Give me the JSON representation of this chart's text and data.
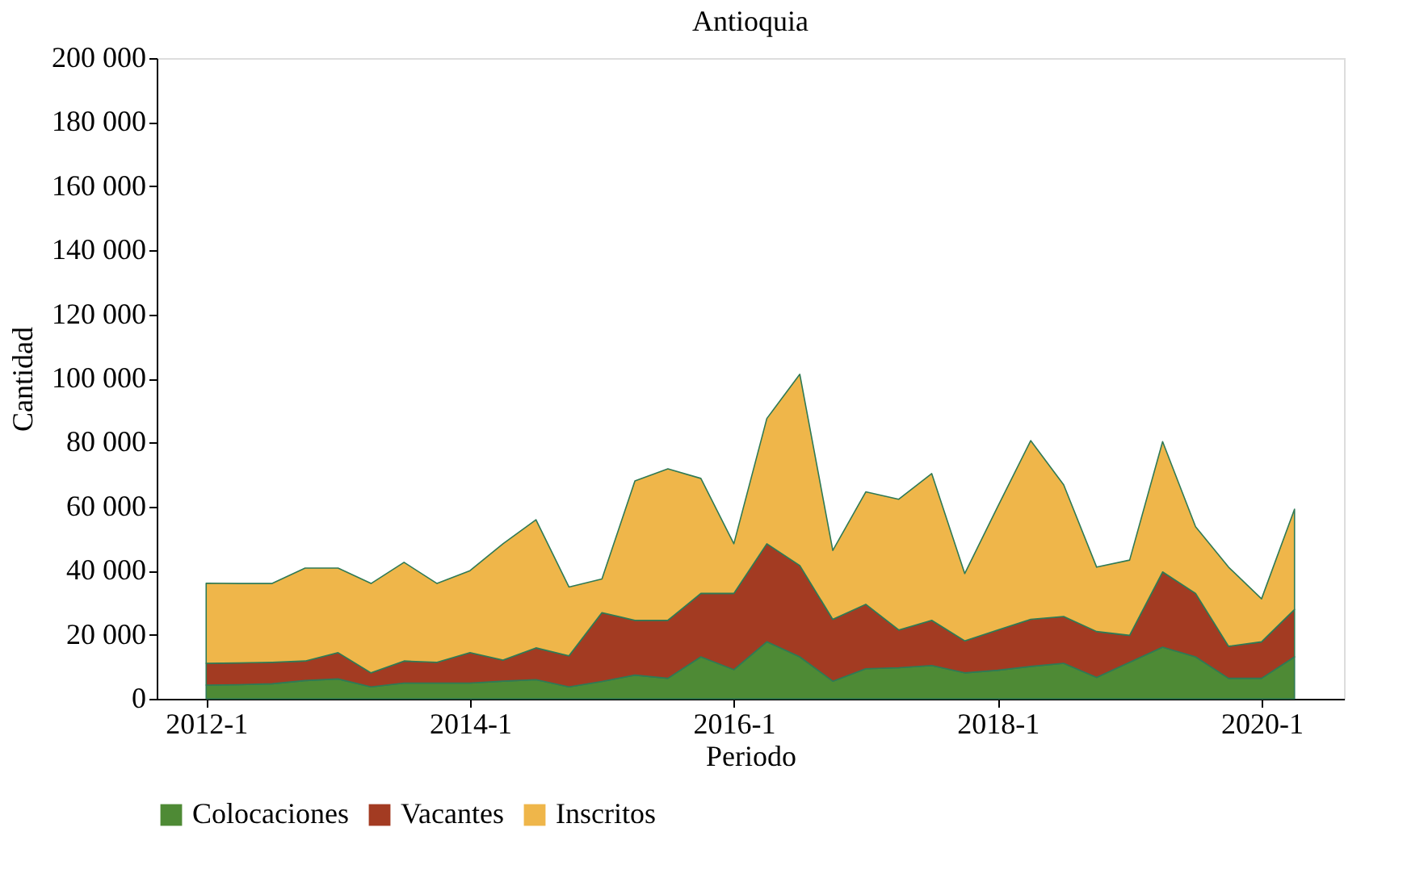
{
  "chart_data": {
    "type": "area",
    "title": "Antioquia",
    "xlabel": "Periodo",
    "ylabel": "Cantidad",
    "stacked": true,
    "legend": "bottom",
    "grid": false,
    "categories": [
      "2012-1",
      null,
      null,
      null,
      null,
      null,
      null,
      null,
      "2014-1",
      null,
      null,
      null,
      null,
      null,
      null,
      null,
      "2016-1",
      null,
      null,
      null,
      null,
      null,
      null,
      null,
      "2018-1",
      null,
      null,
      null,
      null,
      null,
      null,
      null,
      "2020-1",
      null
    ],
    "series": [
      {
        "name": "Colocaciones",
        "color": "#4e8a35",
        "values": [
          4300,
          4400,
          4700,
          5700,
          6200,
          3700,
          4900,
          4900,
          4900,
          5500,
          6000,
          3700,
          5400,
          7400,
          6400,
          13100,
          9100,
          17800,
          13100,
          5500,
          9400,
          9700,
          10400,
          8100,
          8900,
          10100,
          11100,
          6700,
          11400,
          16100,
          13100,
          6400,
          6400,
          13100
        ]
      },
      {
        "name": "Vacantes",
        "color": "#a33b22",
        "values": [
          6800,
          6800,
          6700,
          6100,
          8200,
          4400,
          6900,
          6500,
          9500,
          6600,
          9900,
          9700,
          21500,
          17100,
          18100,
          19800,
          23800,
          30600,
          28500,
          19300,
          20100,
          11800,
          14100,
          10000,
          12600,
          14700,
          14600,
          14300,
          8400,
          23500,
          19800,
          10000,
          11400,
          14800
        ]
      },
      {
        "name": "Inscritos",
        "color": "#efb64a",
        "values": [
          25000,
          24800,
          24600,
          29000,
          26400,
          27900,
          30800,
          24600,
          25600,
          36300,
          40000,
          21500,
          10500,
          43500,
          47300,
          35900,
          15500,
          39100,
          59700,
          21500,
          35100,
          40800,
          45800,
          21000,
          38500,
          55800,
          41100,
          20100,
          23500,
          40700,
          20800,
          24700,
          13400,
          31300
        ]
      }
    ],
    "ylim": [
      0,
      200000
    ],
    "yticks": [
      0,
      {
        "value": 20000,
        "label": "20 000"
      },
      {
        "value": 40000,
        "label": "40 000"
      },
      {
        "value": 60000,
        "label": "60 000"
      },
      {
        "value": 80000,
        "label": "80 000"
      },
      {
        "value": 100000,
        "label": "100 000"
      },
      {
        "value": 120000,
        "label": "120 000"
      },
      {
        "value": 140000,
        "label": "140 000"
      },
      {
        "value": 160000,
        "label": "160 000"
      },
      {
        "value": 180000,
        "label": "180 000"
      },
      {
        "value": 200000,
        "label": "200 000"
      }
    ]
  }
}
